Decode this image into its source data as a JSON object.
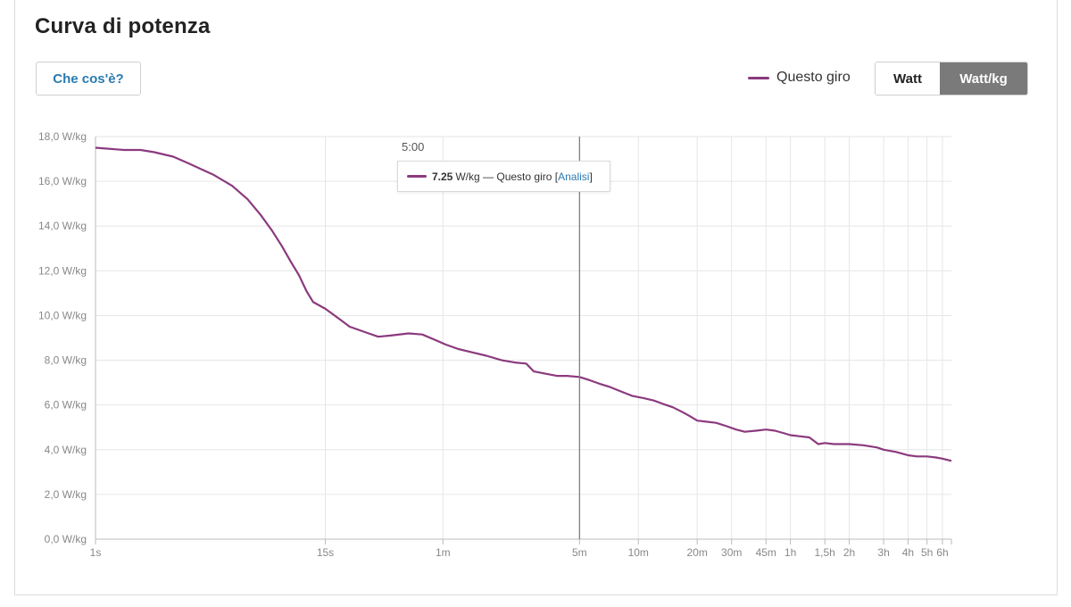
{
  "title": "Curva di potenza",
  "help_button": "Che cos'è?",
  "legend": {
    "label": "Questo giro",
    "color": "#8b3a7e"
  },
  "toggle": {
    "watt": "Watt",
    "wkg": "Watt/kg",
    "active": "Watt/kg"
  },
  "tooltip": {
    "time": "5:00",
    "value": "7.25",
    "unit": "W/kg",
    "series": "Questo giro",
    "bracket_open": "[",
    "link": "Analisi",
    "bracket_close": "]"
  },
  "colors": {
    "series": "#8b3a7e",
    "accent": "#2a7ab0",
    "toggle_active": "#7a7a7a"
  },
  "chart_data": {
    "type": "line",
    "title": "Curva di potenza",
    "xlabel": "",
    "ylabel": "",
    "x_scale": "log",
    "x_unit": "seconds",
    "ylim": [
      0,
      18
    ],
    "y_ticks": [
      {
        "value": 0,
        "label": "0,0 W/kg"
      },
      {
        "value": 2,
        "label": "2,0 W/kg"
      },
      {
        "value": 4,
        "label": "4,0 W/kg"
      },
      {
        "value": 6,
        "label": "6,0 W/kg"
      },
      {
        "value": 8,
        "label": "8,0 W/kg"
      },
      {
        "value": 10,
        "label": "10,0 W/kg"
      },
      {
        "value": 12,
        "label": "12,0 W/kg"
      },
      {
        "value": 14,
        "label": "14,0 W/kg"
      },
      {
        "value": 16,
        "label": "16,0 W/kg"
      },
      {
        "value": 18,
        "label": "18,0 W/kg"
      }
    ],
    "x_ticks": [
      {
        "value": 1,
        "label": "1s"
      },
      {
        "value": 15,
        "label": "15s"
      },
      {
        "value": 60,
        "label": "1m"
      },
      {
        "value": 300,
        "label": "5m"
      },
      {
        "value": 600,
        "label": "10m"
      },
      {
        "value": 1200,
        "label": "20m"
      },
      {
        "value": 1800,
        "label": "30m"
      },
      {
        "value": 2700,
        "label": "45m"
      },
      {
        "value": 3600,
        "label": "1h"
      },
      {
        "value": 5400,
        "label": "1,5h"
      },
      {
        "value": 7200,
        "label": "2h"
      },
      {
        "value": 10800,
        "label": "3h"
      },
      {
        "value": 14400,
        "label": "4h"
      },
      {
        "value": 18000,
        "label": "5h"
      },
      {
        "value": 21600,
        "label": "6h"
      }
    ],
    "grid": true,
    "legend_position": "top-right",
    "series": [
      {
        "name": "Questo giro",
        "color": "#8b3a7e",
        "points": [
          [
            1,
            17.5
          ],
          [
            1.4,
            17.4
          ],
          [
            1.7,
            17.4
          ],
          [
            2,
            17.3
          ],
          [
            2.5,
            17.1
          ],
          [
            3,
            16.8
          ],
          [
            4,
            16.3
          ],
          [
            5,
            15.8
          ],
          [
            6,
            15.2
          ],
          [
            7,
            14.5
          ],
          [
            8,
            13.8
          ],
          [
            9,
            13.1
          ],
          [
            10,
            12.4
          ],
          [
            11,
            11.8
          ],
          [
            12,
            11.1
          ],
          [
            13,
            10.6
          ],
          [
            15,
            10.3
          ],
          [
            18,
            9.8
          ],
          [
            20,
            9.5
          ],
          [
            25,
            9.2
          ],
          [
            28,
            9.05
          ],
          [
            32,
            9.1
          ],
          [
            40,
            9.2
          ],
          [
            47,
            9.15
          ],
          [
            55,
            8.9
          ],
          [
            62,
            8.7
          ],
          [
            72,
            8.5
          ],
          [
            85,
            8.35
          ],
          [
            100,
            8.2
          ],
          [
            120,
            8.0
          ],
          [
            140,
            7.9
          ],
          [
            160,
            7.85
          ],
          [
            175,
            7.5
          ],
          [
            200,
            7.4
          ],
          [
            230,
            7.3
          ],
          [
            260,
            7.3
          ],
          [
            300,
            7.25
          ],
          [
            340,
            7.1
          ],
          [
            380,
            6.95
          ],
          [
            430,
            6.8
          ],
          [
            490,
            6.6
          ],
          [
            560,
            6.4
          ],
          [
            640,
            6.3
          ],
          [
            720,
            6.2
          ],
          [
            800,
            6.05
          ],
          [
            900,
            5.9
          ],
          [
            1000,
            5.7
          ],
          [
            1100,
            5.5
          ],
          [
            1200,
            5.3
          ],
          [
            1350,
            5.25
          ],
          [
            1500,
            5.2
          ],
          [
            1700,
            5.05
          ],
          [
            1900,
            4.9
          ],
          [
            2100,
            4.8
          ],
          [
            2400,
            4.85
          ],
          [
            2700,
            4.9
          ],
          [
            3000,
            4.85
          ],
          [
            3300,
            4.75
          ],
          [
            3600,
            4.65
          ],
          [
            4000,
            4.6
          ],
          [
            4500,
            4.55
          ],
          [
            5000,
            4.25
          ],
          [
            5400,
            4.3
          ],
          [
            6000,
            4.25
          ],
          [
            6600,
            4.25
          ],
          [
            7200,
            4.25
          ],
          [
            8500,
            4.2
          ],
          [
            10000,
            4.1
          ],
          [
            10800,
            4.0
          ],
          [
            12500,
            3.9
          ],
          [
            14400,
            3.75
          ],
          [
            16000,
            3.7
          ],
          [
            18000,
            3.7
          ],
          [
            20000,
            3.65
          ],
          [
            21600,
            3.6
          ],
          [
            24000,
            3.5
          ]
        ]
      }
    ],
    "cursor": {
      "x": 300,
      "label": "5:00",
      "value": 7.25
    }
  }
}
